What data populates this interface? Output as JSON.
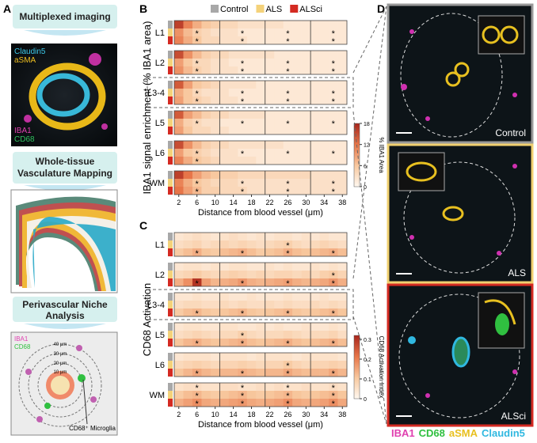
{
  "panel_labels": [
    "A",
    "B",
    "C",
    "D"
  ],
  "panel_a": {
    "steps": [
      "Multiplexed imaging",
      "Whole-tissue",
      "Vasculature Mapping",
      "Perivascular Niche",
      "Analysis"
    ],
    "image_labels": [
      {
        "text": "Claudin5",
        "color": "#3cc8e8"
      },
      {
        "text": "aSMA",
        "color": "#f0c020"
      },
      {
        "text": "IBA1",
        "color": "#e040b0"
      },
      {
        "text": "CD68",
        "color": "#30c060"
      }
    ],
    "niche_labels": {
      "iba1": "IBA1",
      "cd68": "CD68",
      "rings": [
        "40 μm",
        "30 μm",
        "20 μm",
        "10 μm"
      ],
      "microglia": "CD68⁺ Microglia"
    }
  },
  "legend": [
    {
      "name": "Control",
      "color": "#a8a8a8"
    },
    {
      "name": "ALS",
      "color": "#f4d27a"
    },
    {
      "name": "ALSci",
      "color": "#d42a22"
    }
  ],
  "heatmaps": [
    {
      "ylabel": "IBA1 signal enrichment (% IBA1 area)",
      "xlabel": "Distance from blood vessel (μm)",
      "x": [
        2,
        4,
        6,
        8,
        10,
        12,
        14,
        16,
        18,
        20,
        22,
        24,
        26,
        28,
        30,
        32,
        34,
        36,
        38
      ],
      "xticks": [
        2,
        6,
        10,
        14,
        18,
        22,
        26,
        30,
        34,
        38
      ],
      "colorbar_label": "% IBA1 Area",
      "clim": [
        0,
        18
      ],
      "cticks": [
        0,
        6,
        12,
        18
      ],
      "star": "*",
      "layers": [
        {
          "name": "L1",
          "rows": [
            [
              16,
              11,
              8,
              6,
              5,
              4,
              4,
              3,
              3,
              3,
              3,
              3,
              2,
              2,
              2,
              2,
              2,
              2,
              2
            ],
            [
              10,
              7,
              5,
              4,
              3,
              3,
              3,
              2,
              2,
              2,
              2,
              2,
              2,
              2,
              2,
              2,
              2,
              2,
              2
            ],
            [
              11,
              8,
              6,
              4,
              4,
              3,
              3,
              3,
              2,
              2,
              2,
              2,
              2,
              2,
              2,
              2,
              2,
              2,
              2
            ]
          ],
          "stars": [
            [],
            [
              6,
              16,
              26,
              36
            ],
            [
              6,
              16,
              26,
              36
            ]
          ]
        },
        {
          "name": "L2",
          "rows": [
            [
              15,
              10,
              7,
              5,
              4,
              4,
              3,
              3,
              3,
              3,
              3,
              2,
              2,
              2,
              2,
              2,
              2,
              2,
              2
            ],
            [
              9,
              6,
              4,
              4,
              3,
              3,
              2,
              2,
              2,
              2,
              2,
              2,
              2,
              2,
              2,
              2,
              2,
              2,
              2
            ],
            [
              10,
              7,
              5,
              4,
              3,
              3,
              3,
              2,
              2,
              2,
              2,
              2,
              2,
              2,
              2,
              2,
              2,
              2,
              2
            ]
          ],
          "stars": [
            [],
            [
              6,
              16,
              26,
              36
            ],
            [
              6,
              16,
              26,
              36
            ]
          ]
        },
        {
          "name": "L3-4",
          "rows": [
            [
              14,
              9,
              6,
              5,
              4,
              3,
              3,
              3,
              3,
              2,
              2,
              2,
              2,
              2,
              2,
              2,
              2,
              2,
              2
            ],
            [
              8,
              6,
              4,
              3,
              3,
              3,
              2,
              2,
              2,
              2,
              2,
              2,
              2,
              2,
              2,
              2,
              2,
              2,
              2
            ],
            [
              9,
              6,
              5,
              4,
              3,
              3,
              3,
              2,
              2,
              2,
              2,
              2,
              2,
              2,
              2,
              2,
              2,
              2,
              2
            ]
          ],
          "stars": [
            [],
            [
              6,
              16,
              26,
              36
            ],
            [
              6,
              16,
              26,
              36
            ]
          ]
        },
        {
          "name": "L5",
          "rows": [
            [
              14,
              9,
              7,
              5,
              4,
              4,
              3,
              3,
              3,
              3,
              2,
              2,
              2,
              2,
              2,
              2,
              2,
              2,
              2
            ],
            [
              8,
              5,
              4,
              3,
              3,
              2,
              2,
              2,
              2,
              2,
              2,
              2,
              2,
              2,
              2,
              2,
              2,
              2,
              2
            ],
            [
              9,
              6,
              4,
              4,
              3,
              3,
              2,
              2,
              2,
              2,
              2,
              2,
              2,
              2,
              2,
              2,
              2,
              2,
              2
            ]
          ],
          "stars": [
            [],
            [
              6,
              16,
              26,
              36
            ],
            []
          ]
        },
        {
          "name": "L6",
          "rows": [
            [
              15,
              10,
              7,
              5,
              4,
              4,
              3,
              3,
              3,
              3,
              3,
              3,
              2,
              2,
              2,
              2,
              2,
              2,
              2
            ],
            [
              9,
              6,
              5,
              4,
              3,
              3,
              3,
              2,
              2,
              2,
              2,
              2,
              2,
              2,
              2,
              2,
              2,
              2,
              2
            ],
            [
              11,
              8,
              6,
              5,
              4,
              3,
              3,
              3,
              3,
              2,
              2,
              2,
              2,
              2,
              2,
              2,
              2,
              2,
              2
            ]
          ],
          "stars": [
            [],
            [
              6,
              16,
              26,
              36
            ],
            [
              6
            ]
          ]
        },
        {
          "name": "WM",
          "rows": [
            [
              16,
              12,
              9,
              7,
              6,
              5,
              5,
              4,
              4,
              4,
              4,
              4,
              4,
              4,
              4,
              3,
              3,
              3,
              3
            ],
            [
              11,
              8,
              6,
              5,
              4,
              4,
              4,
              3,
              3,
              3,
              3,
              3,
              3,
              3,
              3,
              3,
              3,
              3,
              3
            ],
            [
              12,
              9,
              7,
              5,
              5,
              4,
              4,
              4,
              3,
              3,
              3,
              3,
              3,
              3,
              3,
              3,
              3,
              3,
              3
            ]
          ],
          "stars": [
            [],
            [
              6,
              16,
              26,
              36
            ],
            [
              6,
              16,
              26,
              36
            ]
          ]
        }
      ]
    },
    {
      "ylabel": "CD68 Activation",
      "xlabel": "Distance from blood vessel (μm)",
      "x": [
        2,
        4,
        6,
        8,
        10,
        12,
        14,
        16,
        18,
        20,
        22,
        24,
        26,
        28,
        30,
        32,
        34,
        36,
        38
      ],
      "xticks": [
        2,
        6,
        10,
        14,
        18,
        22,
        26,
        30,
        34,
        38
      ],
      "colorbar_label": "CD68 Activation Index",
      "clim": [
        0,
        0.32
      ],
      "cticks": [
        0,
        0.1,
        0.2,
        0.3
      ],
      "star": "*",
      "layers": [
        {
          "name": "L1",
          "rows": [
            [
              0.04,
              0.05,
              0.06,
              0.05,
              0.04,
              0.05,
              0.06,
              0.05,
              0.04,
              0.05,
              0.04,
              0.05,
              0.05,
              0.04,
              0.05,
              0.04,
              0.05,
              0.04,
              0.04
            ],
            [
              0.06,
              0.07,
              0.08,
              0.06,
              0.07,
              0.08,
              0.07,
              0.08,
              0.07,
              0.06,
              0.07,
              0.08,
              0.09,
              0.07,
              0.06,
              0.07,
              0.08,
              0.07,
              0.06
            ],
            [
              0.1,
              0.12,
              0.14,
              0.11,
              0.1,
              0.12,
              0.13,
              0.14,
              0.12,
              0.1,
              0.11,
              0.12,
              0.14,
              0.12,
              0.11,
              0.12,
              0.13,
              0.14,
              0.12
            ]
          ],
          "stars": [
            [],
            [
              26
            ],
            [
              6,
              16,
              26,
              36
            ]
          ]
        },
        {
          "name": "L2",
          "rows": [
            [
              0.04,
              0.05,
              0.05,
              0.04,
              0.05,
              0.04,
              0.05,
              0.05,
              0.04,
              0.04,
              0.05,
              0.04,
              0.05,
              0.04,
              0.04,
              0.05,
              0.04,
              0.05,
              0.04
            ],
            [
              0.07,
              0.08,
              0.1,
              0.08,
              0.07,
              0.08,
              0.09,
              0.08,
              0.07,
              0.08,
              0.07,
              0.08,
              0.08,
              0.07,
              0.08,
              0.07,
              0.09,
              0.1,
              0.08
            ],
            [
              0.14,
              0.18,
              0.3,
              0.16,
              0.13,
              0.14,
              0.15,
              0.17,
              0.14,
              0.13,
              0.14,
              0.15,
              0.16,
              0.14,
              0.13,
              0.14,
              0.15,
              0.17,
              0.14
            ]
          ],
          "stars": [
            [],
            [
              36
            ],
            [
              6,
              16,
              26,
              36
            ]
          ]
        },
        {
          "name": "L3-4",
          "rows": [
            [
              0.04,
              0.04,
              0.05,
              0.04,
              0.04,
              0.05,
              0.04,
              0.04,
              0.05,
              0.04,
              0.04,
              0.04,
              0.05,
              0.04,
              0.04,
              0.04,
              0.05,
              0.04,
              0.04
            ],
            [
              0.06,
              0.07,
              0.07,
              0.06,
              0.06,
              0.07,
              0.06,
              0.07,
              0.06,
              0.06,
              0.07,
              0.06,
              0.07,
              0.06,
              0.06,
              0.07,
              0.06,
              0.07,
              0.06
            ],
            [
              0.1,
              0.12,
              0.13,
              0.11,
              0.1,
              0.11,
              0.12,
              0.13,
              0.11,
              0.1,
              0.11,
              0.12,
              0.13,
              0.11,
              0.1,
              0.11,
              0.12,
              0.13,
              0.11
            ]
          ],
          "stars": [
            [],
            [],
            [
              6,
              16,
              26,
              36
            ]
          ]
        },
        {
          "name": "L5",
          "rows": [
            [
              0.04,
              0.05,
              0.05,
              0.04,
              0.04,
              0.05,
              0.05,
              0.04,
              0.04,
              0.05,
              0.04,
              0.05,
              0.04,
              0.04,
              0.05,
              0.04,
              0.04,
              0.05,
              0.04
            ],
            [
              0.06,
              0.07,
              0.08,
              0.07,
              0.06,
              0.07,
              0.07,
              0.09,
              0.07,
              0.06,
              0.07,
              0.07,
              0.08,
              0.07,
              0.06,
              0.07,
              0.07,
              0.08,
              0.06
            ],
            [
              0.11,
              0.13,
              0.14,
              0.12,
              0.11,
              0.12,
              0.13,
              0.14,
              0.12,
              0.11,
              0.12,
              0.13,
              0.14,
              0.12,
              0.11,
              0.12,
              0.13,
              0.14,
              0.12
            ]
          ],
          "stars": [
            [],
            [
              16
            ],
            [
              6,
              16,
              26,
              36
            ]
          ]
        },
        {
          "name": "L6",
          "rows": [
            [
              0.04,
              0.05,
              0.05,
              0.05,
              0.04,
              0.05,
              0.05,
              0.05,
              0.04,
              0.05,
              0.05,
              0.05,
              0.05,
              0.04,
              0.05,
              0.05,
              0.05,
              0.05,
              0.04
            ],
            [
              0.07,
              0.08,
              0.09,
              0.08,
              0.07,
              0.08,
              0.08,
              0.09,
              0.08,
              0.07,
              0.08,
              0.08,
              0.1,
              0.08,
              0.07,
              0.08,
              0.08,
              0.09,
              0.08
            ],
            [
              0.11,
              0.13,
              0.15,
              0.13,
              0.12,
              0.13,
              0.13,
              0.14,
              0.13,
              0.12,
              0.13,
              0.13,
              0.15,
              0.13,
              0.12,
              0.13,
              0.13,
              0.15,
              0.13
            ]
          ],
          "stars": [
            [],
            [
              26
            ],
            [
              6,
              16,
              26,
              36
            ]
          ]
        },
        {
          "name": "WM",
          "rows": [
            [
              0.05,
              0.06,
              0.06,
              0.05,
              0.05,
              0.06,
              0.06,
              0.05,
              0.05,
              0.06,
              0.05,
              0.06,
              0.05,
              0.05,
              0.06,
              0.05,
              0.05,
              0.06,
              0.05
            ],
            [
              0.1,
              0.12,
              0.13,
              0.11,
              0.1,
              0.11,
              0.12,
              0.13,
              0.11,
              0.1,
              0.11,
              0.12,
              0.13,
              0.11,
              0.1,
              0.11,
              0.12,
              0.13,
              0.11
            ],
            [
              0.14,
              0.16,
              0.18,
              0.15,
              0.14,
              0.15,
              0.16,
              0.17,
              0.15,
              0.14,
              0.15,
              0.16,
              0.18,
              0.15,
              0.14,
              0.15,
              0.16,
              0.18,
              0.15
            ]
          ],
          "stars": [
            [
              6,
              16,
              26,
              36
            ],
            [
              6,
              16,
              26,
              36
            ],
            [
              6,
              16,
              26,
              36
            ]
          ]
        }
      ]
    }
  ],
  "panel_d": {
    "conditions": [
      "Control",
      "ALS",
      "ALSci"
    ],
    "channels": [
      {
        "text": "IBA1",
        "color": "#e040b0"
      },
      {
        "text": "CD68",
        "color": "#30c040"
      },
      {
        "text": "aSMA",
        "color": "#e8c020"
      },
      {
        "text": "Claudin5",
        "color": "#30b8e0"
      }
    ]
  }
}
